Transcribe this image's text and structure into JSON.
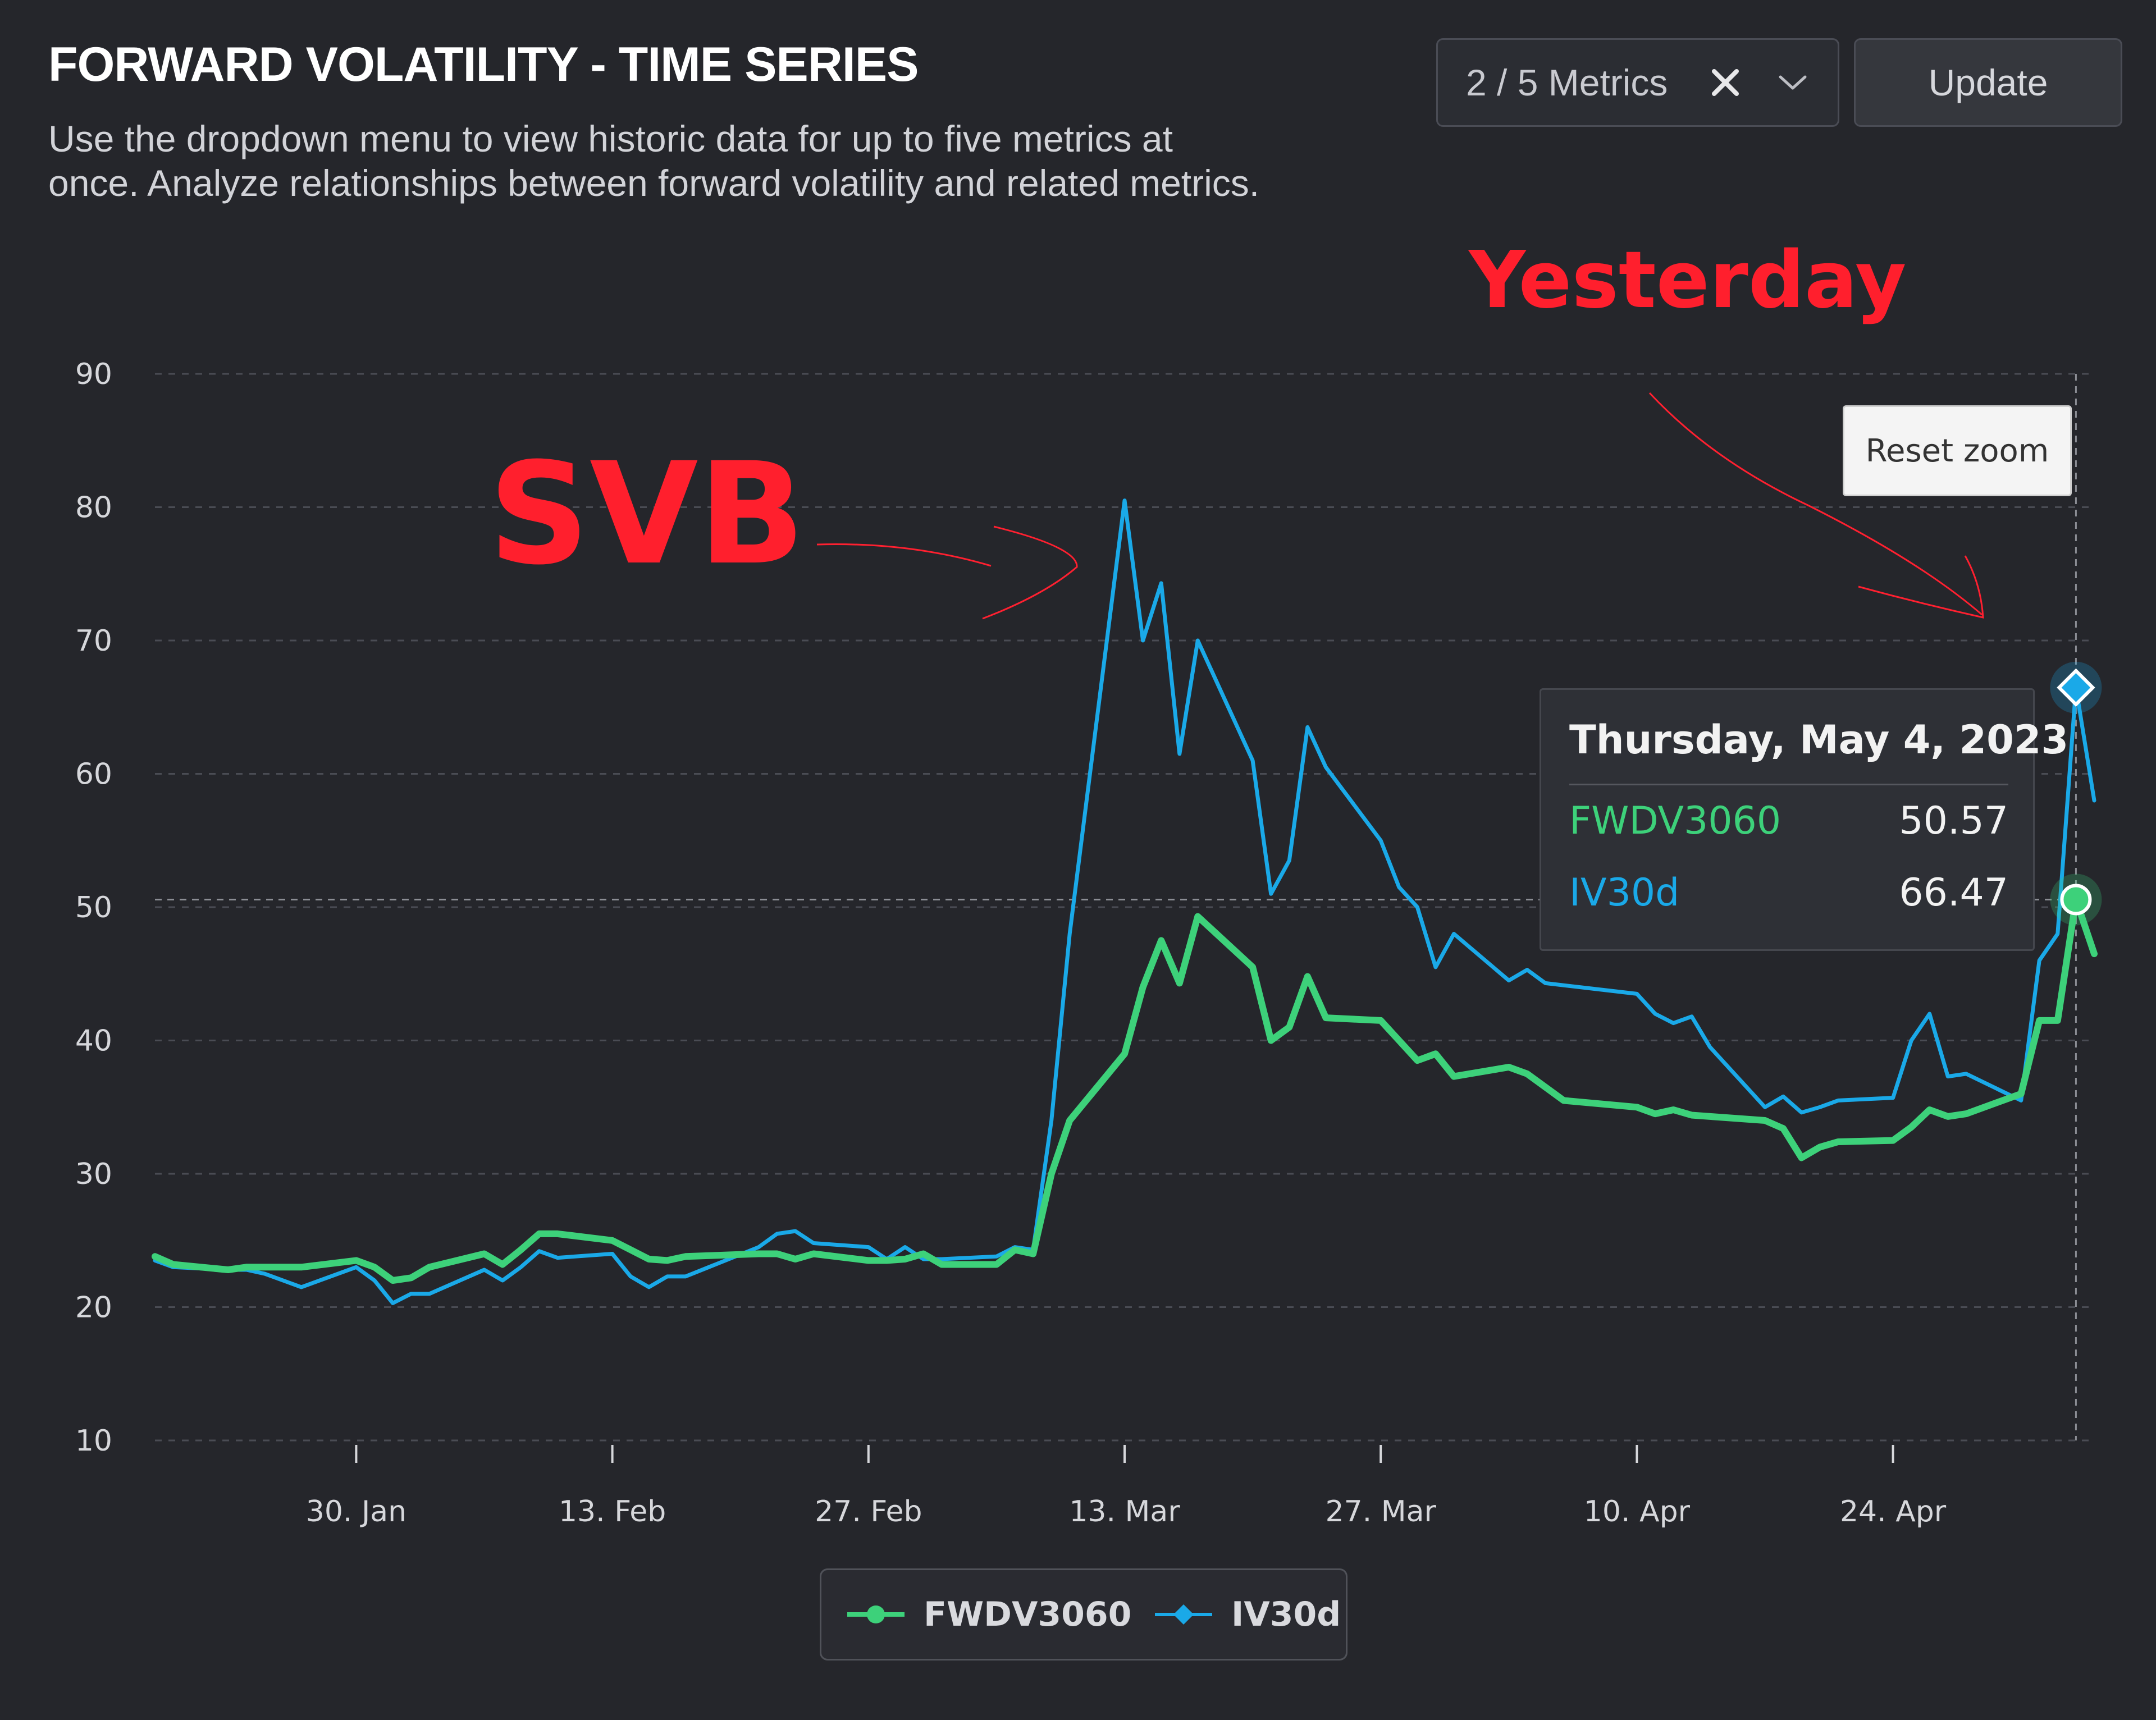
{
  "header": {
    "title": "FORWARD VOLATILITY - TIME SERIES",
    "description": "Use the dropdown menu to view historic data for up to five metrics at once. Analyze relationships between forward volatility and related metrics."
  },
  "controls": {
    "metrics_select_value": "2 / 5 Metrics",
    "clear_icon": "close-icon",
    "chevron_icon": "chevron-down-icon",
    "update_label": "Update",
    "reset_zoom_label": "Reset zoom"
  },
  "annotations": {
    "svb": "SVB",
    "yesterday": "Yesterday"
  },
  "tooltip": {
    "date": "Thursday, May 4, 2023",
    "rows": [
      {
        "name": "FWDV3060",
        "value": "50.57"
      },
      {
        "name": "IV30d",
        "value": "66.47"
      }
    ]
  },
  "legend": [
    {
      "name": "FWDV3060",
      "color": "#3dd17a"
    },
    {
      "name": "IV30d",
      "color": "#1aa9e8"
    }
  ],
  "chart_data": {
    "type": "line",
    "title": "",
    "xlabel": "",
    "ylabel": "",
    "ylim": [
      10,
      90
    ],
    "yticks": [
      90,
      80,
      70,
      60,
      50,
      40,
      30,
      20,
      10
    ],
    "xticks": [
      {
        "date": "2023-01-30",
        "label": "30. Jan"
      },
      {
        "date": "2023-02-13",
        "label": "13. Feb"
      },
      {
        "date": "2023-02-27",
        "label": "27. Feb"
      },
      {
        "date": "2023-03-13",
        "label": "13. Mar"
      },
      {
        "date": "2023-03-27",
        "label": "27. Mar"
      },
      {
        "date": "2023-04-10",
        "label": "10. Apr"
      },
      {
        "date": "2023-04-24",
        "label": "24. Apr"
      }
    ],
    "xlim": [
      "2023-01-19",
      "2023-05-05"
    ],
    "grid": true,
    "legend_position": "bottom-center",
    "highlight": {
      "date": "2023-05-04",
      "FWDV3060": 50.57,
      "IV30d": 66.47
    },
    "series": [
      {
        "name": "FWDV3060",
        "color": "#3dd17a",
        "points": [
          [
            "2023-01-19",
            23.8
          ],
          [
            "2023-01-20",
            23.2
          ],
          [
            "2023-01-23",
            22.8
          ],
          [
            "2023-01-24",
            23.0
          ],
          [
            "2023-01-25",
            23.0
          ],
          [
            "2023-01-26",
            23.0
          ],
          [
            "2023-01-27",
            23.0
          ],
          [
            "2023-01-30",
            23.5
          ],
          [
            "2023-01-31",
            23.0
          ],
          [
            "2023-02-01",
            22.0
          ],
          [
            "2023-02-02",
            22.2
          ],
          [
            "2023-02-03",
            23.0
          ],
          [
            "2023-02-06",
            24.0
          ],
          [
            "2023-02-07",
            23.2
          ],
          [
            "2023-02-08",
            24.3
          ],
          [
            "2023-02-09",
            25.5
          ],
          [
            "2023-02-10",
            25.5
          ],
          [
            "2023-02-13",
            25.0
          ],
          [
            "2023-02-14",
            24.3
          ],
          [
            "2023-02-15",
            23.6
          ],
          [
            "2023-02-16",
            23.5
          ],
          [
            "2023-02-17",
            23.8
          ],
          [
            "2023-02-21",
            24.0
          ],
          [
            "2023-02-22",
            24.0
          ],
          [
            "2023-02-23",
            23.6
          ],
          [
            "2023-02-24",
            24.0
          ],
          [
            "2023-02-27",
            23.5
          ],
          [
            "2023-02-28",
            23.5
          ],
          [
            "2023-03-01",
            23.6
          ],
          [
            "2023-03-02",
            24.0
          ],
          [
            "2023-03-03",
            23.2
          ],
          [
            "2023-03-06",
            23.2
          ],
          [
            "2023-03-07",
            24.3
          ],
          [
            "2023-03-08",
            24.0
          ],
          [
            "2023-03-09",
            30.0
          ],
          [
            "2023-03-10",
            34.0
          ],
          [
            "2023-03-13",
            39.0
          ],
          [
            "2023-03-14",
            44.0
          ],
          [
            "2023-03-15",
            47.5
          ],
          [
            "2023-03-16",
            44.3
          ],
          [
            "2023-03-17",
            49.3
          ],
          [
            "2023-03-20",
            45.5
          ],
          [
            "2023-03-21",
            40.0
          ],
          [
            "2023-03-22",
            41.0
          ],
          [
            "2023-03-23",
            44.8
          ],
          [
            "2023-03-24",
            41.7
          ],
          [
            "2023-03-27",
            41.5
          ],
          [
            "2023-03-28",
            40.0
          ],
          [
            "2023-03-29",
            38.5
          ],
          [
            "2023-03-30",
            39.0
          ],
          [
            "2023-03-31",
            37.3
          ],
          [
            "2023-04-03",
            38.0
          ],
          [
            "2023-04-04",
            37.5
          ],
          [
            "2023-04-05",
            36.5
          ],
          [
            "2023-04-06",
            35.5
          ],
          [
            "2023-04-10",
            35.0
          ],
          [
            "2023-04-11",
            34.5
          ],
          [
            "2023-04-12",
            34.8
          ],
          [
            "2023-04-13",
            34.4
          ],
          [
            "2023-04-14",
            34.3
          ],
          [
            "2023-04-17",
            34.0
          ],
          [
            "2023-04-18",
            33.4
          ],
          [
            "2023-04-19",
            31.2
          ],
          [
            "2023-04-20",
            32.0
          ],
          [
            "2023-04-21",
            32.4
          ],
          [
            "2023-04-24",
            32.5
          ],
          [
            "2023-04-25",
            33.5
          ],
          [
            "2023-04-26",
            34.8
          ],
          [
            "2023-04-27",
            34.3
          ],
          [
            "2023-04-28",
            34.5
          ],
          [
            "2023-05-01",
            36.0
          ],
          [
            "2023-05-02",
            41.5
          ],
          [
            "2023-05-03",
            41.5
          ],
          [
            "2023-05-04",
            50.57
          ],
          [
            "2023-05-05",
            46.5
          ]
        ]
      },
      {
        "name": "IV30d",
        "color": "#1aa9e8",
        "points": [
          [
            "2023-01-19",
            23.5
          ],
          [
            "2023-01-20",
            23.0
          ],
          [
            "2023-01-23",
            22.8
          ],
          [
            "2023-01-24",
            22.8
          ],
          [
            "2023-01-25",
            22.5
          ],
          [
            "2023-01-26",
            22.0
          ],
          [
            "2023-01-27",
            21.5
          ],
          [
            "2023-01-30",
            23.0
          ],
          [
            "2023-01-31",
            22.0
          ],
          [
            "2023-02-01",
            20.3
          ],
          [
            "2023-02-02",
            21.0
          ],
          [
            "2023-02-03",
            21.0
          ],
          [
            "2023-02-06",
            22.8
          ],
          [
            "2023-02-07",
            22.0
          ],
          [
            "2023-02-08",
            23.0
          ],
          [
            "2023-02-09",
            24.2
          ],
          [
            "2023-02-10",
            23.7
          ],
          [
            "2023-02-13",
            24.0
          ],
          [
            "2023-02-14",
            22.3
          ],
          [
            "2023-02-15",
            21.5
          ],
          [
            "2023-02-16",
            22.3
          ],
          [
            "2023-02-17",
            22.3
          ],
          [
            "2023-02-21",
            24.5
          ],
          [
            "2023-02-22",
            25.5
          ],
          [
            "2023-02-23",
            25.7
          ],
          [
            "2023-02-24",
            24.8
          ],
          [
            "2023-02-27",
            24.5
          ],
          [
            "2023-02-28",
            23.6
          ],
          [
            "2023-03-01",
            24.5
          ],
          [
            "2023-03-02",
            23.6
          ],
          [
            "2023-03-03",
            23.6
          ],
          [
            "2023-03-06",
            23.8
          ],
          [
            "2023-03-07",
            24.5
          ],
          [
            "2023-03-08",
            24.3
          ],
          [
            "2023-03-09",
            34.0
          ],
          [
            "2023-03-10",
            48.0
          ],
          [
            "2023-03-13",
            80.5
          ],
          [
            "2023-03-14",
            70.0
          ],
          [
            "2023-03-15",
            74.3
          ],
          [
            "2023-03-16",
            61.5
          ],
          [
            "2023-03-17",
            70.0
          ],
          [
            "2023-03-20",
            61.0
          ],
          [
            "2023-03-21",
            51.0
          ],
          [
            "2023-03-22",
            53.5
          ],
          [
            "2023-03-23",
            63.5
          ],
          [
            "2023-03-24",
            60.5
          ],
          [
            "2023-03-27",
            55.0
          ],
          [
            "2023-03-28",
            51.5
          ],
          [
            "2023-03-29",
            50.0
          ],
          [
            "2023-03-30",
            45.5
          ],
          [
            "2023-03-31",
            48.0
          ],
          [
            "2023-04-03",
            44.5
          ],
          [
            "2023-04-04",
            45.3
          ],
          [
            "2023-04-05",
            44.3
          ],
          [
            "2023-04-10",
            43.5
          ],
          [
            "2023-04-11",
            42.0
          ],
          [
            "2023-04-12",
            41.3
          ],
          [
            "2023-04-13",
            41.8
          ],
          [
            "2023-04-14",
            39.5
          ],
          [
            "2023-04-17",
            35.0
          ],
          [
            "2023-04-18",
            35.8
          ],
          [
            "2023-04-19",
            34.6
          ],
          [
            "2023-04-20",
            35.0
          ],
          [
            "2023-04-21",
            35.5
          ],
          [
            "2023-04-24",
            35.7
          ],
          [
            "2023-04-25",
            40.0
          ],
          [
            "2023-04-26",
            42.0
          ],
          [
            "2023-04-27",
            37.3
          ],
          [
            "2023-04-28",
            37.5
          ],
          [
            "2023-05-01",
            35.5
          ],
          [
            "2023-05-02",
            46.0
          ],
          [
            "2023-05-03",
            48.0
          ],
          [
            "2023-05-04",
            66.47
          ],
          [
            "2023-05-05",
            58.0
          ]
        ]
      }
    ]
  }
}
